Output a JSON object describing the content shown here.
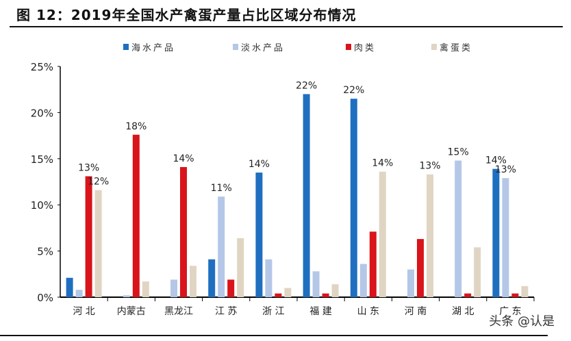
{
  "title": "图 12：2019年全国水产禽蛋产量占比区域分布情况",
  "watermark": "头条 @认是",
  "chart_data": {
    "type": "bar",
    "title": "2019年全国水产禽蛋产量占比区域分布情况",
    "xlabel": "",
    "ylabel": "",
    "ylim": [
      0,
      25
    ],
    "yticks": [
      "0%",
      "5%",
      "10%",
      "15%",
      "20%",
      "25%"
    ],
    "legend_position": "top",
    "categories": [
      "河 北",
      "内蒙古",
      "黑龙江",
      "江 苏",
      "浙 江",
      "福 建",
      "山 东",
      "河 南",
      "湖 北",
      "广 东"
    ],
    "series": [
      {
        "name": "海水产品",
        "color": "#1f6fc0",
        "values": [
          2.1,
          0,
          0,
          4.1,
          13.5,
          22.0,
          21.5,
          0,
          0,
          13.9
        ],
        "labels": [
          null,
          null,
          null,
          null,
          "14%",
          "22%",
          "22%",
          null,
          null,
          "14%"
        ]
      },
      {
        "name": "淡水产品",
        "color": "#b4c7e7",
        "values": [
          0.8,
          0.2,
          1.9,
          10.9,
          4.1,
          2.8,
          3.6,
          3.0,
          14.8,
          12.9
        ],
        "labels": [
          null,
          null,
          null,
          "11%",
          null,
          null,
          null,
          null,
          "15%",
          "13%"
        ]
      },
      {
        "name": "肉类",
        "color": "#d9141b",
        "values": [
          13.1,
          17.6,
          14.1,
          1.9,
          0.4,
          0.4,
          7.1,
          6.3,
          0.4,
          0.4
        ],
        "labels": [
          "13%",
          "18%",
          "14%",
          null,
          null,
          null,
          null,
          null,
          null,
          null
        ]
      },
      {
        "name": "禽蛋类",
        "color": "#e0d5c3",
        "values": [
          11.6,
          1.7,
          3.4,
          6.4,
          1.0,
          1.4,
          13.6,
          13.3,
          5.4,
          1.2
        ],
        "labels": [
          "12%",
          null,
          null,
          null,
          null,
          null,
          "14%",
          "13%",
          null,
          null
        ]
      }
    ]
  }
}
